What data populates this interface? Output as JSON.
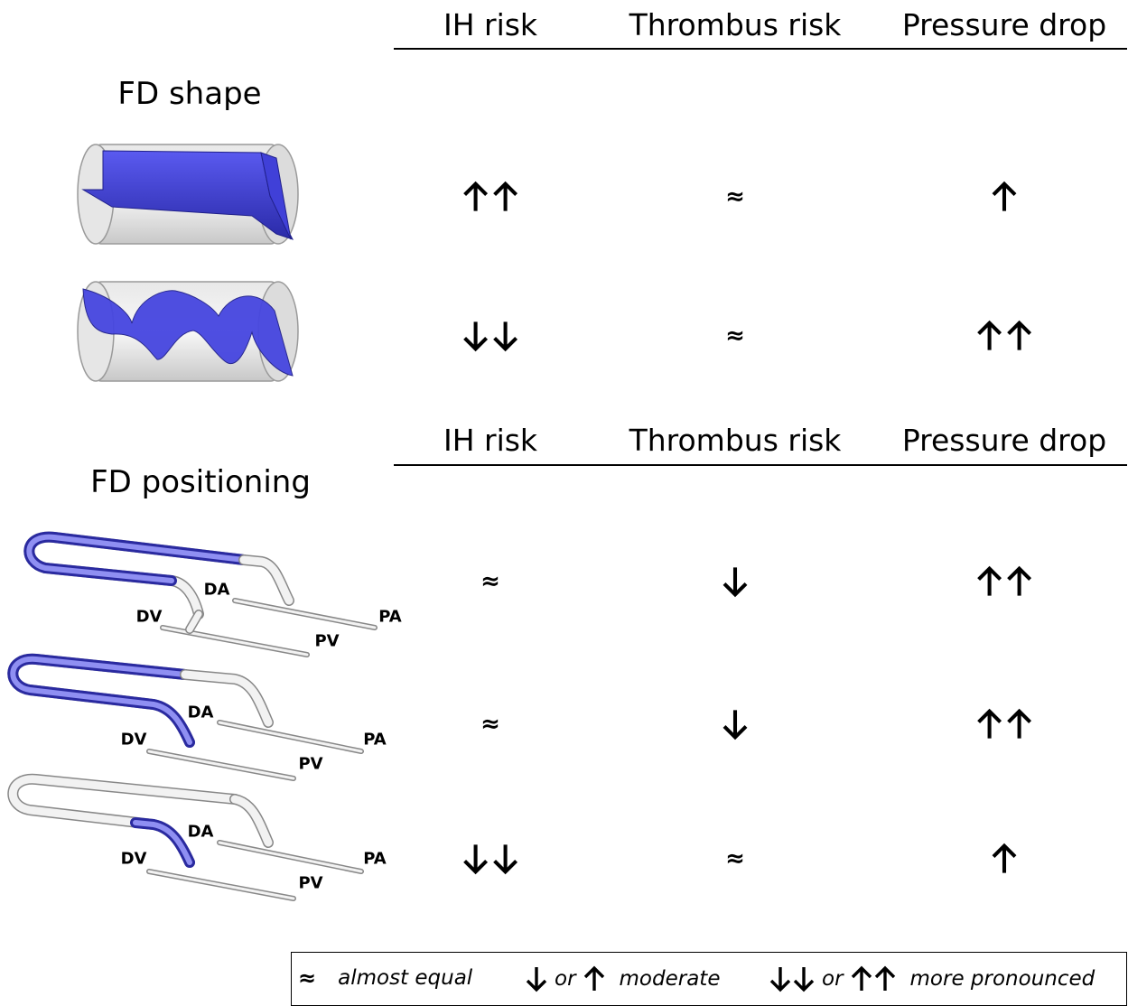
{
  "top_section": {
    "title": "FD shape",
    "headers": [
      "IH risk",
      "Thrombus risk",
      "Pressure drop"
    ],
    "rows": [
      {
        "image": "flat-diverter-cylinder",
        "ih": "up-up",
        "thrombus": "approx",
        "pressure": "up"
      },
      {
        "image": "helical-diverter-cylinder",
        "ih": "down-down",
        "thrombus": "approx",
        "pressure": "up-up"
      }
    ]
  },
  "bottom_section": {
    "title": "FD positioning",
    "headers": [
      "IH risk",
      "Thrombus risk",
      "Pressure drop"
    ],
    "vessel_labels": {
      "da": "DA",
      "dv": "DV",
      "pa": "PA",
      "pv": "PV"
    },
    "rows": [
      {
        "image": "vessel-fd-full-loop",
        "ih": "approx",
        "thrombus": "down",
        "pressure": "up-up"
      },
      {
        "image": "vessel-fd-loop-to-dv",
        "ih": "approx",
        "thrombus": "down",
        "pressure": "up-up"
      },
      {
        "image": "vessel-fd-dv-only",
        "ih": "down-down",
        "thrombus": "approx",
        "pressure": "up"
      }
    ]
  },
  "legend": {
    "approx_symbol": "≈",
    "approx_text": "almost equal",
    "or_text": "or",
    "moderate_text": "moderate",
    "pronounced_text": "more pronounced"
  },
  "colors": {
    "fd_blue": "#3a3ad6",
    "vessel_grey": "#d0d0d0",
    "line": "#000000"
  }
}
